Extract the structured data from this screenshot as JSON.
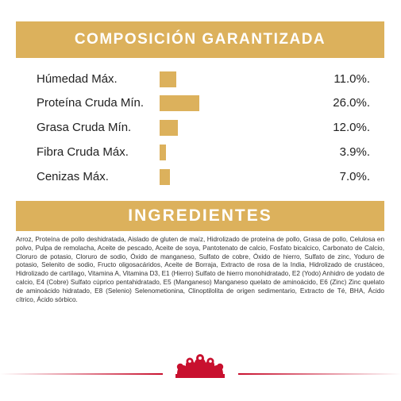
{
  "composition": {
    "title": "COMPOSICIÓN GARANTIZADA",
    "rows": [
      {
        "label": "Húmedad Máx.",
        "value": "11.0%.",
        "percent": 11.0
      },
      {
        "label": "Proteína Cruda Mín.",
        "value": "26.0%.",
        "percent": 26.0
      },
      {
        "label": "Grasa Cruda Mín.",
        "value": "12.0%.",
        "percent": 12.0
      },
      {
        "label": "Fibra Cruda Máx.",
        "value": "3.9%.",
        "percent": 3.9
      },
      {
        "label": "Cenizas Máx.",
        "value": "7.0%.",
        "percent": 7.0
      }
    ]
  },
  "ingredients": {
    "title": "INGREDIENTES",
    "text": "Arroz, Proteína de pollo deshidratada, Aislado de gluten de maíz, Hidrolizado de proteína de pollo, Grasa de pollo, Celulosa en polvo, Pulpa de remolacha, Aceite de pescado, Aceite de soya, Pantotenato de calcio, Fosfato bicalcico, Carbonato de Calcio, Cloruro de potasio, Cloruro de sodio, Óxido de manganeso, Sulfato de cobre, Óxido de hierro, Sulfato de zinc, Yoduro de potasio, Selenito de sodio, Fructo oligosacáridos, Aceite de Borraja, Extracto de rosa de la India, Hidrolizado de crustáceo, Hidrolizado de cartílago, Vitamina A, Vitamina D3, E1 (Hierro) Sulfato de hierro monohidratado, E2 (Yodo) Anhidro de yodato de calcio, E4 (Cobre) Sulfato cúprico pentahidratado, E5 (Manganeso) Manganeso quelato de aminoácido, E6 (Zinc) Zinc quelato de aminoácido hidratado, E8 (Selenio) Selenometionina, Clinoptilolita de origen sedimentario, Extracto de Té, BHA, Ácido cítrico, Ácido sórbico."
  },
  "colors": {
    "accent": "#dcb15c",
    "brand_red": "#c8102e"
  },
  "logo": {
    "icon": "royal-canin-crown-icon"
  }
}
